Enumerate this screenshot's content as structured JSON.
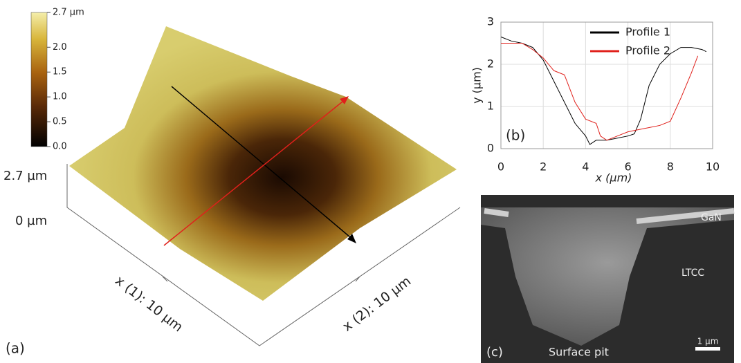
{
  "chart_data": [
    {
      "type": "line",
      "panel_label": "(b)",
      "x_label": "x (µm)",
      "y_label": "y (µm)",
      "xlim": [
        0,
        10
      ],
      "ylim": [
        0,
        3
      ],
      "xticks": [
        0,
        2,
        4,
        6,
        8,
        10
      ],
      "yticks": [
        0,
        1,
        2,
        3
      ],
      "grid": true,
      "legend": "top-right",
      "series": [
        {
          "name": "Profile 1",
          "color": "#000000",
          "x": [
            0,
            0.5,
            1,
            1.5,
            2,
            2.5,
            3,
            3.5,
            4,
            4.2,
            4.5,
            5,
            5.5,
            6,
            6.3,
            6.6,
            7,
            7.5,
            8,
            8.5,
            9,
            9.5,
            9.7
          ],
          "values": [
            2.65,
            2.55,
            2.5,
            2.4,
            2.1,
            1.6,
            1.1,
            0.6,
            0.3,
            0.1,
            0.2,
            0.2,
            0.25,
            0.3,
            0.35,
            0.7,
            1.5,
            2.0,
            2.25,
            2.4,
            2.4,
            2.35,
            2.3
          ]
        },
        {
          "name": "Profile 2",
          "color": "#e0201b",
          "x": [
            0,
            0.5,
            1,
            1.5,
            2,
            2.5,
            3,
            3.5,
            4,
            4.5,
            4.7,
            5,
            5.5,
            6,
            6.5,
            7,
            7.5,
            8,
            8.5,
            9,
            9.3
          ],
          "values": [
            2.5,
            2.5,
            2.5,
            2.35,
            2.15,
            1.85,
            1.75,
            1.1,
            0.7,
            0.6,
            0.3,
            0.2,
            0.3,
            0.4,
            0.45,
            0.5,
            0.55,
            0.65,
            1.2,
            1.8,
            2.2
          ]
        }
      ]
    }
  ],
  "panel_a": {
    "panel_label": "(a)",
    "z_top": "2.7 µm",
    "z_bottom": "0 µm",
    "x1_label": "x (1): 10 µm",
    "x2_label": "x (2): 10 µm",
    "colorbar": {
      "lim": [
        0,
        2.7
      ],
      "ticks": [
        {
          "value": 0,
          "label": "0.0"
        },
        {
          "value": 0.5,
          "label": "0.5"
        },
        {
          "value": 1,
          "label": "1.0"
        },
        {
          "value": 1.5,
          "label": "1.5"
        },
        {
          "value": 2,
          "label": "2.0"
        },
        {
          "value": 2.7,
          "label": "2.7 µm"
        }
      ]
    }
  },
  "panel_c": {
    "panel_label": "(c)",
    "layer_top": "GaN",
    "layer_bottom": "LTCC",
    "feature": "Surface pit",
    "scale_bar": "1 µm"
  }
}
